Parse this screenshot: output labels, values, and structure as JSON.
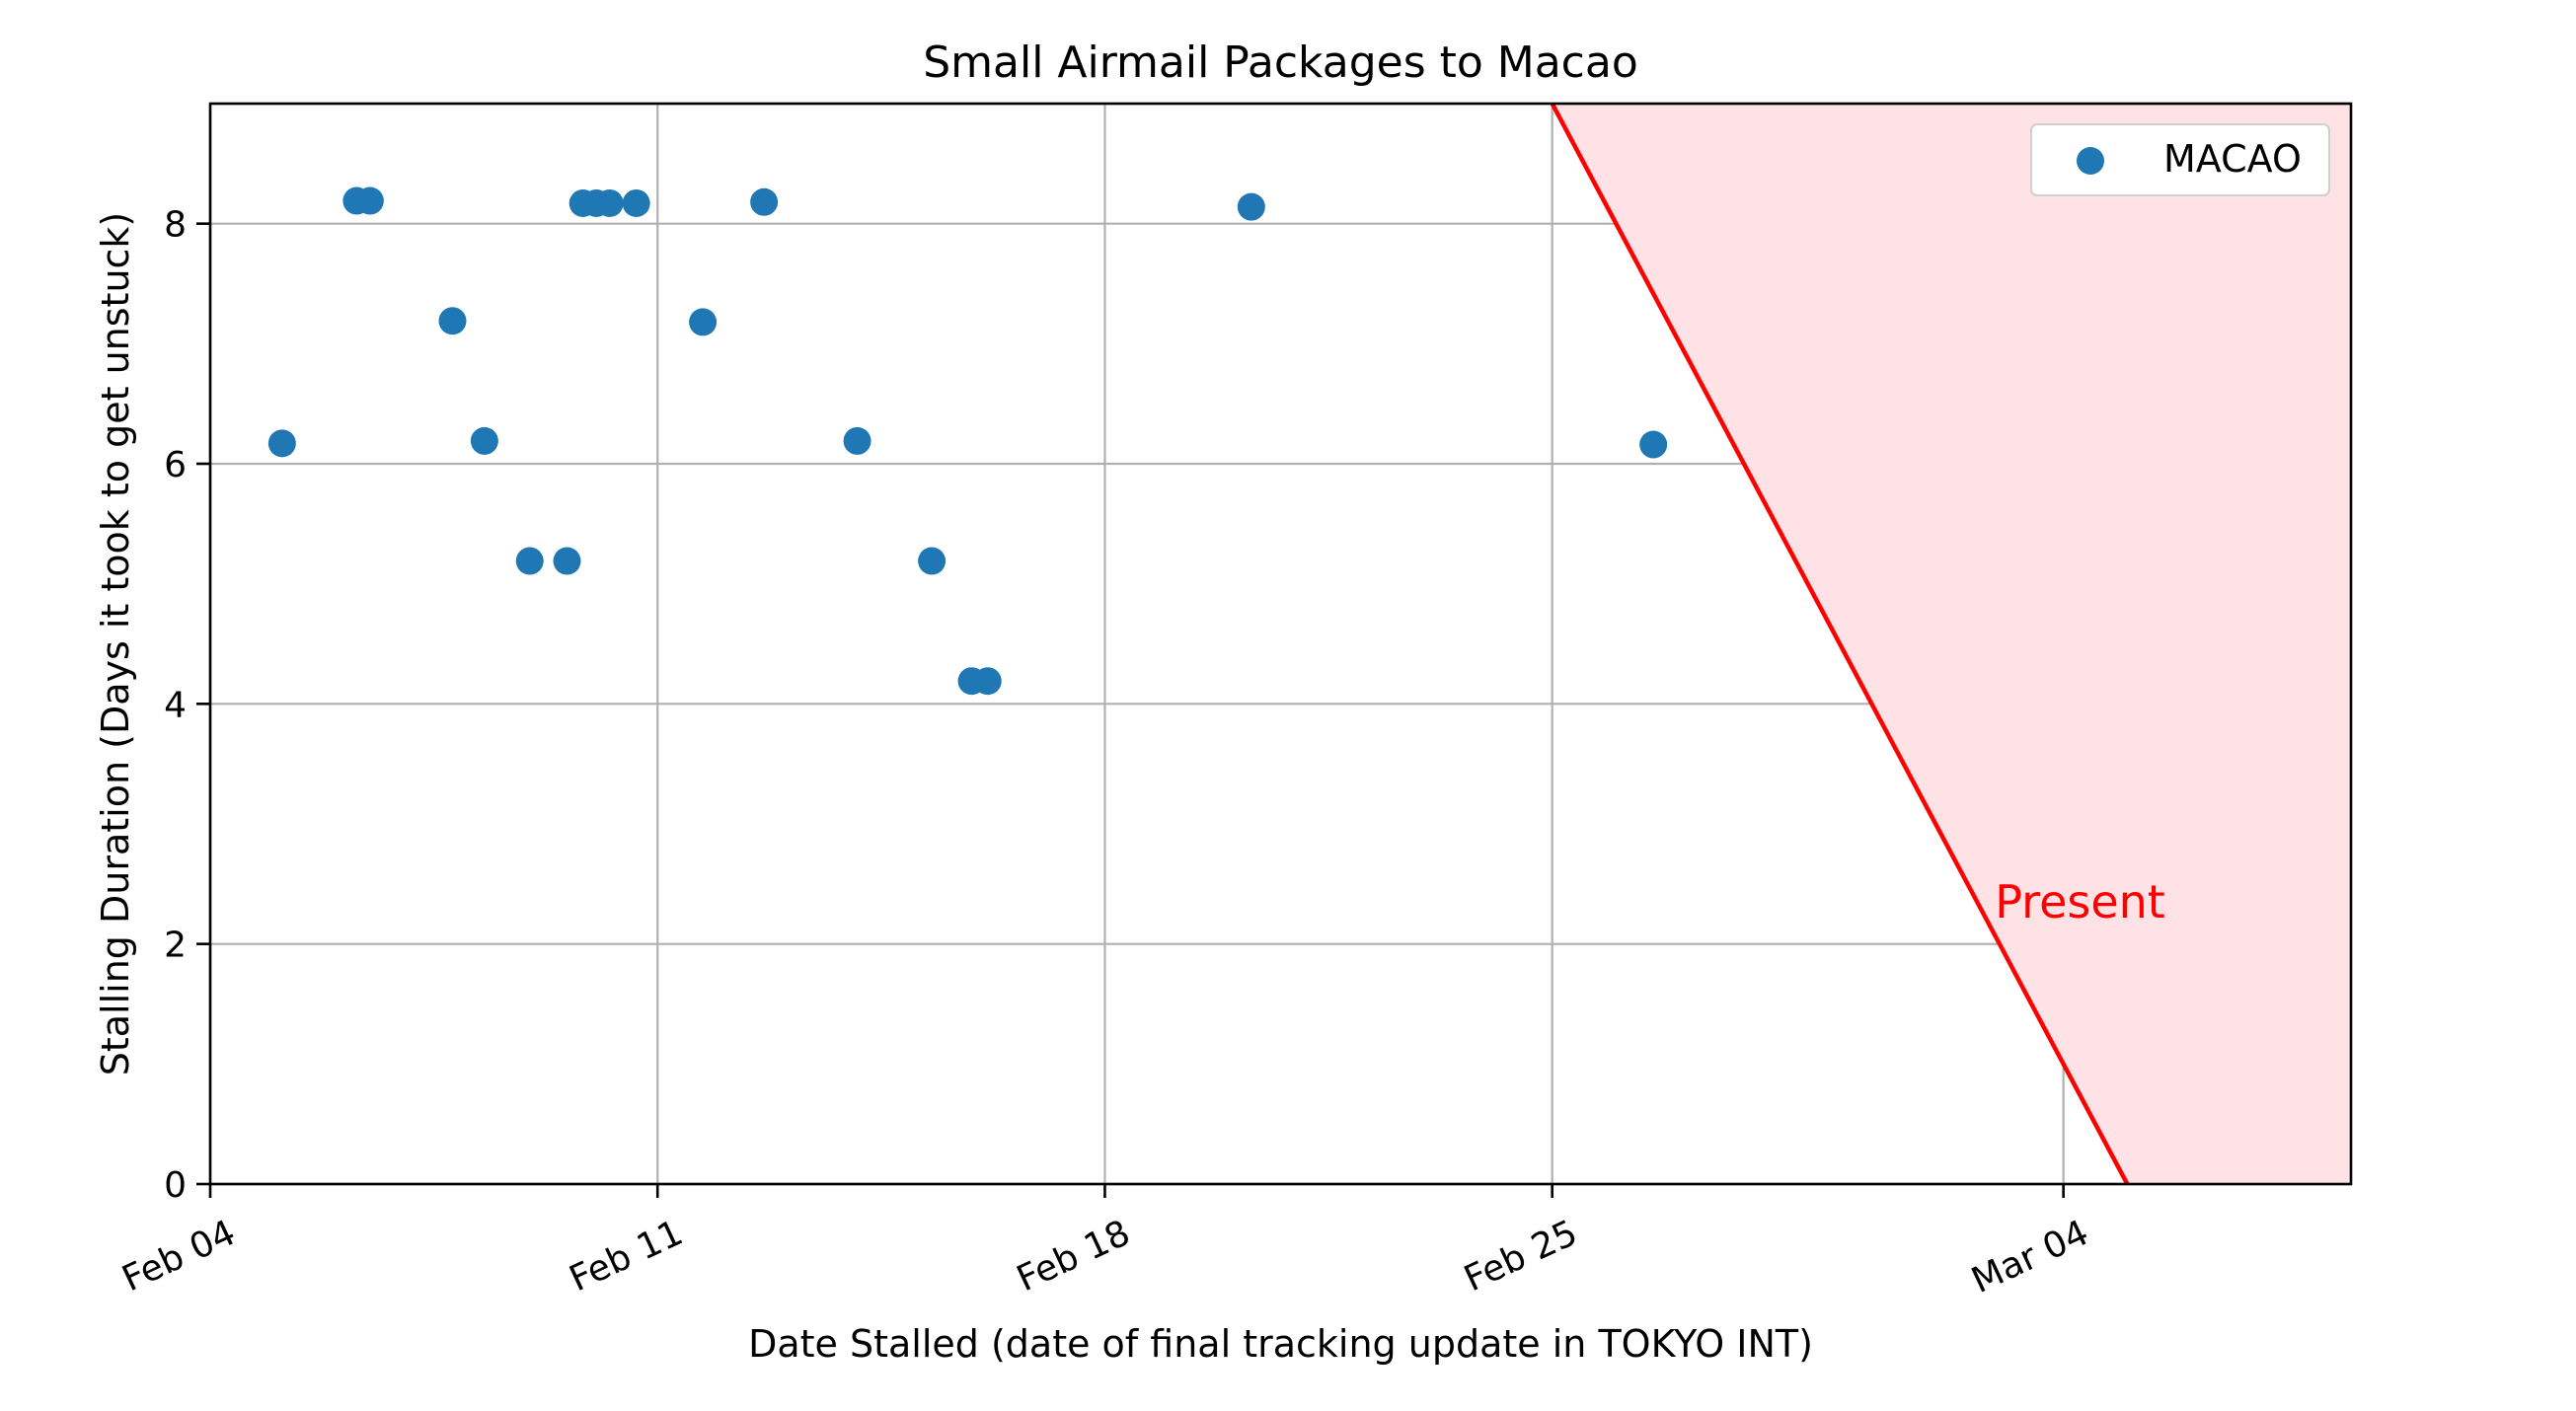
{
  "chart_data": {
    "type": "scatter",
    "title": "Small Airmail Packages to Macao",
    "xlabel": "Date Stalled (date of final tracking update in TOKYO INT)",
    "ylabel": "Stalling Duration (Days it took to get unstuck)",
    "x_axis_type": "date",
    "xlim": [
      "2024-02-04",
      "2024-03-08T12:00"
    ],
    "ylim": [
      0,
      9
    ],
    "x_ticks": [
      {
        "value": "2024-02-04",
        "label": "Feb 04"
      },
      {
        "value": "2024-02-11",
        "label": "Feb 11"
      },
      {
        "value": "2024-02-18",
        "label": "Feb 18"
      },
      {
        "value": "2024-02-25",
        "label": "Feb 25"
      },
      {
        "value": "2024-03-04",
        "label": "Mar 04"
      }
    ],
    "y_ticks": [
      {
        "value": 0,
        "label": "0"
      },
      {
        "value": 2,
        "label": "2"
      },
      {
        "value": 4,
        "label": "4"
      },
      {
        "value": 6,
        "label": "6"
      },
      {
        "value": 8,
        "label": "8"
      }
    ],
    "grid": true,
    "legend": {
      "position": "top-right"
    },
    "series": [
      {
        "name": "MACAO",
        "color": "#1f77b4",
        "points": [
          {
            "x": "2024-02-05T03:00",
            "y": 6.17
          },
          {
            "x": "2024-02-06T07:00",
            "y": 8.19
          },
          {
            "x": "2024-02-06T12:00",
            "y": 8.19
          },
          {
            "x": "2024-02-07T19:00",
            "y": 7.19
          },
          {
            "x": "2024-02-08T07:00",
            "y": 6.19
          },
          {
            "x": "2024-02-09T00:00",
            "y": 5.19
          },
          {
            "x": "2024-02-09T14:00",
            "y": 5.19
          },
          {
            "x": "2024-02-09T20:00",
            "y": 8.17
          },
          {
            "x": "2024-02-10T01:00",
            "y": 8.17
          },
          {
            "x": "2024-02-10T06:00",
            "y": 8.17
          },
          {
            "x": "2024-02-10T16:00",
            "y": 8.17
          },
          {
            "x": "2024-02-11T17:00",
            "y": 7.18
          },
          {
            "x": "2024-02-12T16:00",
            "y": 8.18
          },
          {
            "x": "2024-02-14T03:00",
            "y": 6.19
          },
          {
            "x": "2024-02-15T07:00",
            "y": 5.19
          },
          {
            "x": "2024-02-15T22:00",
            "y": 4.19
          },
          {
            "x": "2024-02-16T04:00",
            "y": 4.19
          },
          {
            "x": "2024-02-20T07:00",
            "y": 8.14
          },
          {
            "x": "2024-02-26T14:00",
            "y": 6.16
          }
        ]
      }
    ],
    "present_line": {
      "label": "Present",
      "color": "#ff0000",
      "fill_color": "#ffe2e5",
      "x_at_y0": "2024-03-05",
      "slope_days_per_unit": -1
    }
  }
}
